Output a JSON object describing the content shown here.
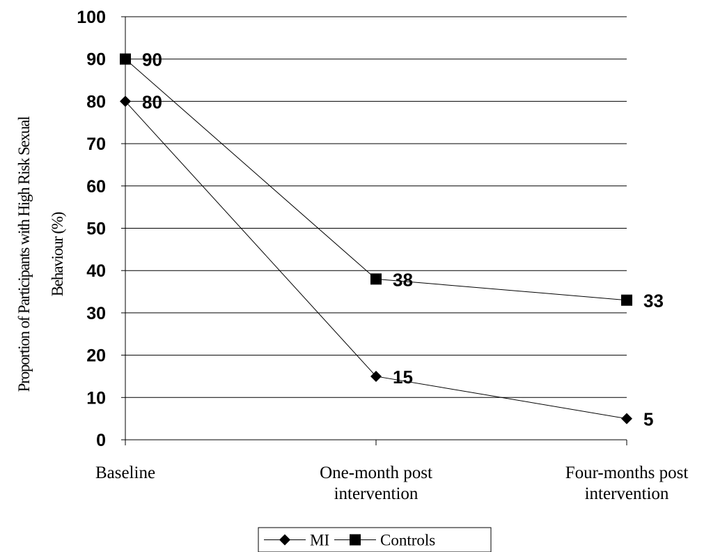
{
  "chart_data": {
    "type": "line",
    "categories": [
      [
        "Baseline"
      ],
      [
        "One-month post",
        "intervention"
      ],
      [
        "Four-months post",
        "intervention"
      ]
    ],
    "ylabel": [
      "Proportion of Participants with High Risk Sexual",
      "Behaviour (%)"
    ],
    "ylim": [
      0,
      100
    ],
    "yticks": [
      0,
      10,
      20,
      30,
      40,
      50,
      60,
      70,
      80,
      90,
      100
    ],
    "grid": true,
    "legend_position": "bottom",
    "series": [
      {
        "name": "MI",
        "marker": "diamond",
        "color": "#000000",
        "values": [
          80,
          15,
          5
        ]
      },
      {
        "name": "Controls",
        "marker": "square",
        "color": "#000000",
        "values": [
          90,
          38,
          33
        ]
      }
    ]
  }
}
